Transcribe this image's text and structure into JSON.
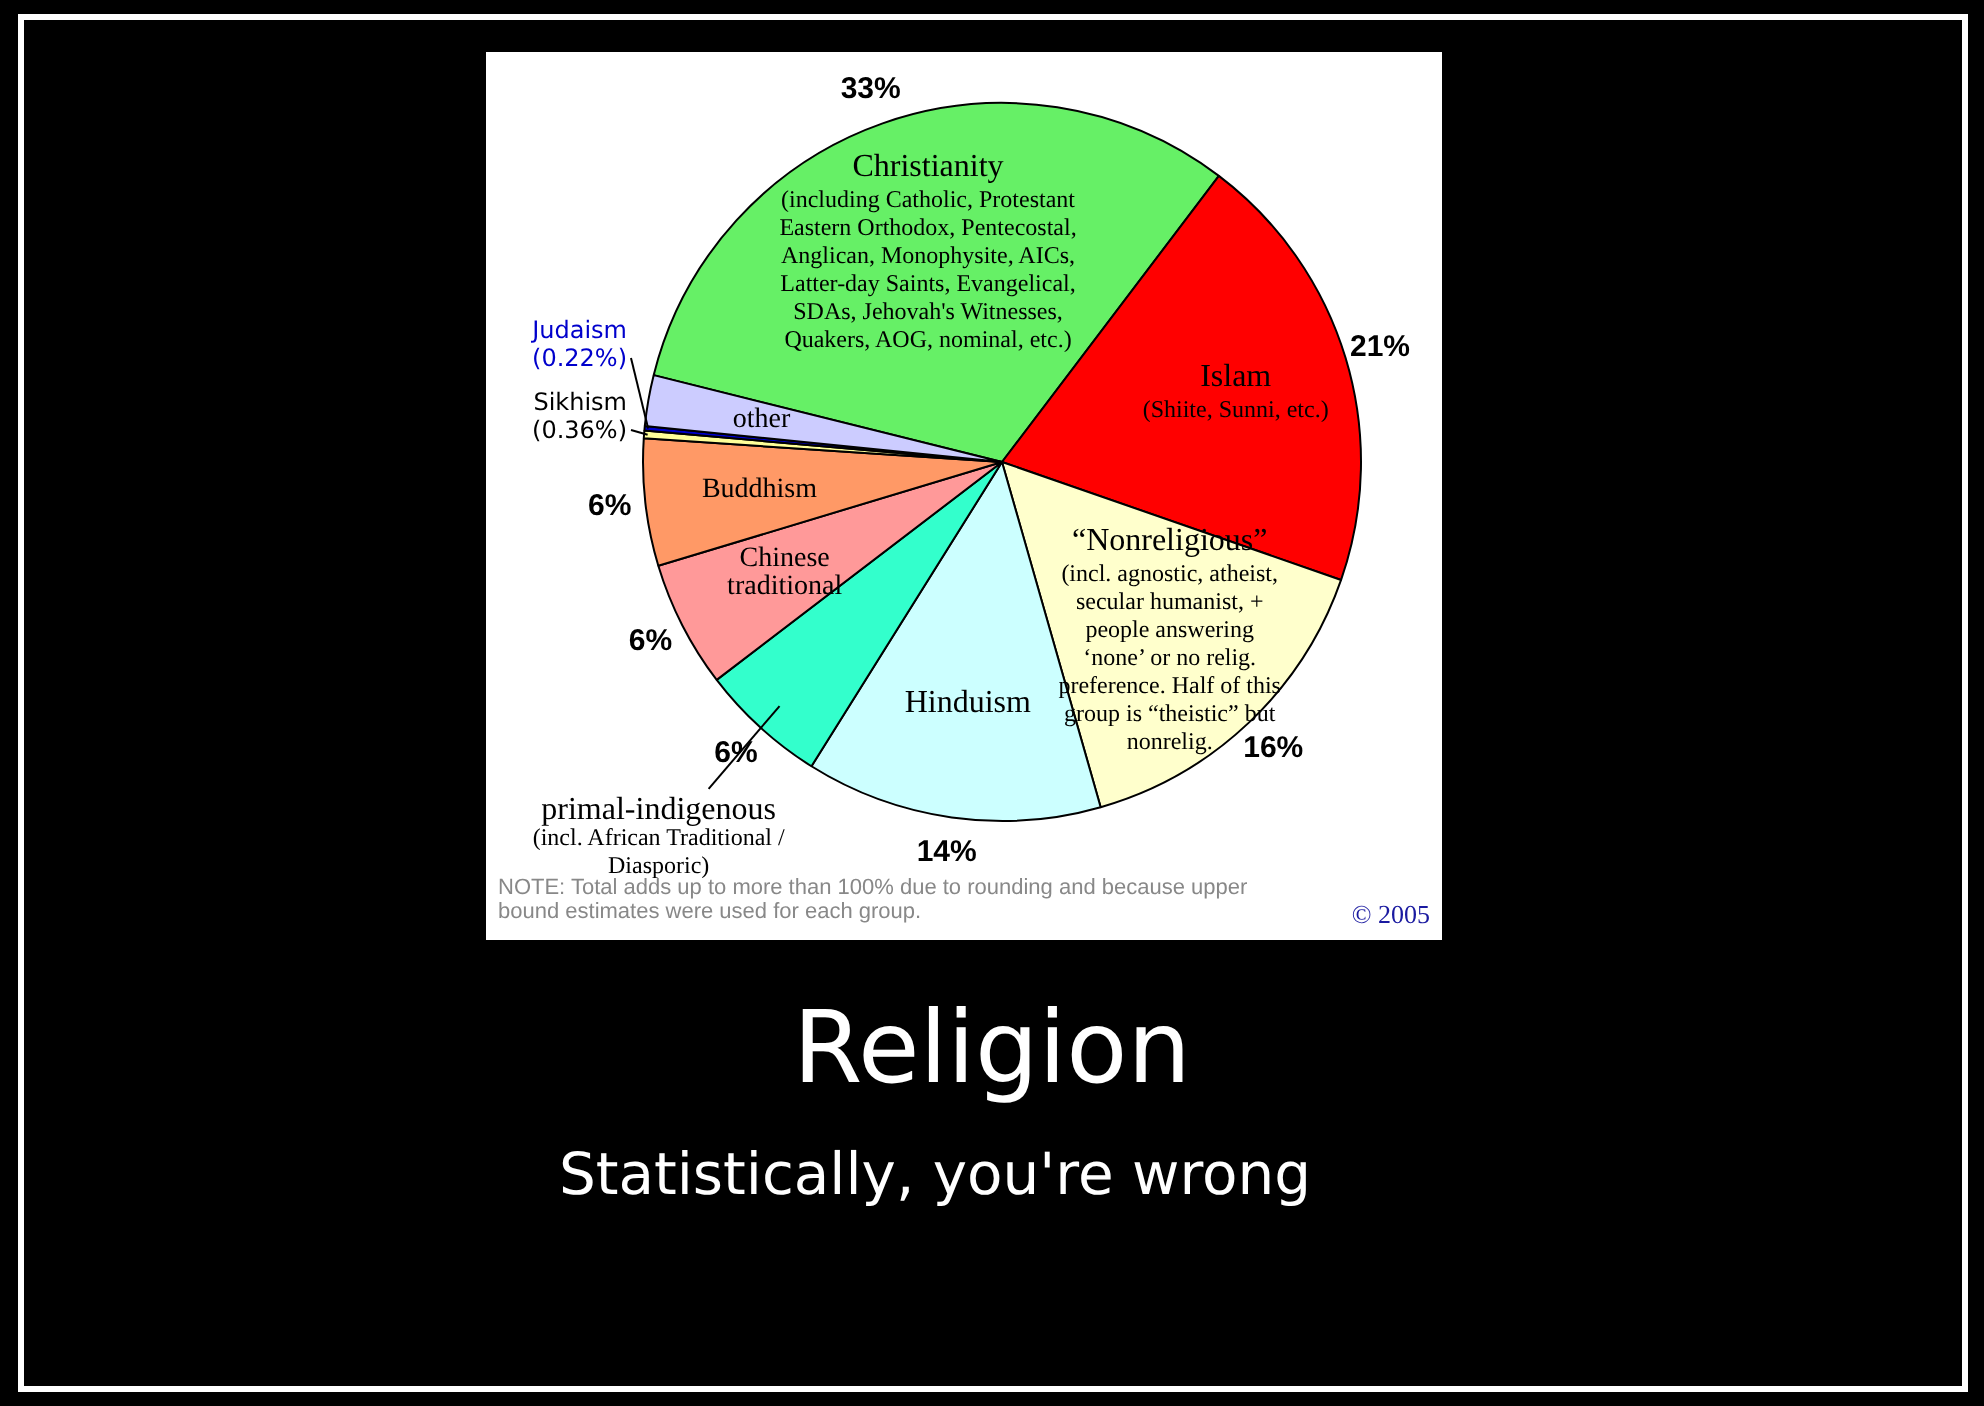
{
  "chart_data": {
    "type": "pie",
    "title": "Religion",
    "subtitle": "Statistically, you're wrong",
    "categories": [
      "Christianity",
      "Islam",
      "“Nonreligious”",
      "Hinduism",
      "primal-indigenous",
      "Chinese traditional",
      "Buddhism",
      "Sikhism",
      "Judaism",
      "other"
    ],
    "values": [
      33,
      21,
      16,
      14,
      6,
      6,
      6,
      0.36,
      0.22,
      2.4
    ],
    "colors": [
      "#66f066",
      "#ff0000",
      "#ffffcc",
      "#ccffff",
      "#33ffcc",
      "#ff9999",
      "#ff9966",
      "#ffff99",
      "#0000cc",
      "#ccccff"
    ],
    "value_labels": [
      "33%",
      "21%",
      "16%",
      "14%",
      "6%",
      "6%",
      "6%",
      "(0.36%)",
      "(0.22%)",
      null
    ],
    "annotations": [
      {
        "text": "(including Catholic, Protestant Eastern Orthodox, Pentecostal, Anglican, Monophysite, AICs, Latter-day Saints, Evangelical, SDAs, Jehovah's Witnesses, Quakers, AOG, nominal, etc.)",
        "x": "Christianity"
      },
      {
        "text": "(Shiite, Sunni, etc.)",
        "x": "Islam"
      },
      {
        "text": "(incl. agnostic, atheist, secular humanist, + people answering ‘none’ or no relig. preference. Half of this group is “theistic” but nonrelig.",
        "x": "“Nonreligious”"
      },
      {
        "text": "(incl. African Traditional / Diasporic)",
        "x": "primal-indigenous"
      },
      "NOTE: Total adds up to more than 100% due to rounding and because upper bound estimates were used for each group.",
      "© 2005"
    ]
  }
}
